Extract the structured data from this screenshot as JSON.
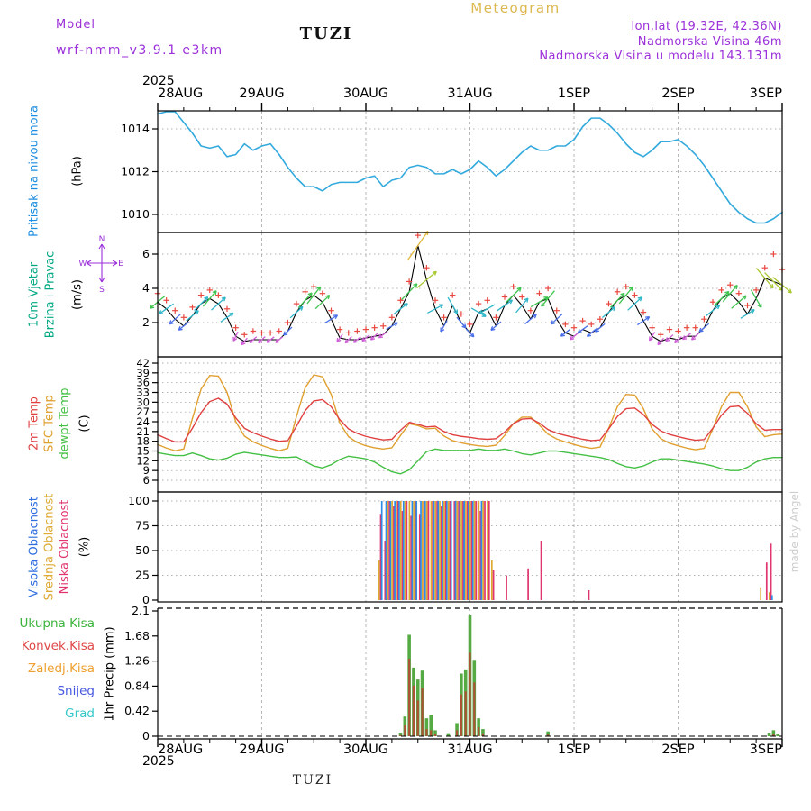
{
  "header": {
    "meteogram_label": "Meteogram",
    "model_label": "Model",
    "model_name": "wrf-nmm_v3.9.1 e3km",
    "station": "TUZI",
    "lonlat": "lon,lat (19.32E, 42.36N)",
    "elevation": "Nadmorska Visina 46m",
    "model_elevation": "Nadmorska Visina u modelu 143.131m"
  },
  "footer": {
    "station": "TUZI",
    "credit": "made by Angel"
  },
  "axis": {
    "year": "2025",
    "dates": [
      "28AUG",
      "29AUG",
      "30AUG",
      "31AUG",
      "1SEP",
      "2SEP",
      "3SEP"
    ],
    "hours_span": 144
  },
  "compass": {
    "n": "N",
    "e": "E",
    "s": "S",
    "w": "W"
  },
  "panels": {
    "pressure": {
      "label": "Pritisak na nivou mora",
      "unit": "(hPa)"
    },
    "wind": {
      "label1": "10m Vjetar",
      "label2": "Brzina i Pravac",
      "unit": "(m/s)"
    },
    "temp": {
      "label1": "2m Temp",
      "label2": "SFC Temp",
      "label3": "dewpt Temp",
      "unit": "(C)"
    },
    "cloud": {
      "label1": "Visoka Oblacnost",
      "label2": "Srednja Oblacnost",
      "label3": "Niska Oblacnost",
      "unit": "(%)"
    },
    "precip": {
      "label1": "Ukupna Kisa",
      "label2": "Konvek.Kisa",
      "label3": "Zaledj.Kisa",
      "label4": "Snijeg",
      "label5": "Grad",
      "unit": "1hr Precip (mm)"
    }
  },
  "colors": {
    "header_purple": "#9b30d9",
    "gold": "#ddb84f",
    "grid": "#999999",
    "pressure_line": "#33aadd",
    "pressure_label": "#1c8de0",
    "wind_label": "#00a884",
    "wind_line": "#000000",
    "gust_marker": "#e8483f",
    "temp2m": "#e04040",
    "sfc": "#e0a030",
    "dew": "#44c044",
    "cloud_high": "#2e8be6",
    "cloud_mid": "#ddaa33",
    "cloud_low": "#e0366e",
    "precip_total": "#55aa44",
    "precip_conv": "#bb4433",
    "precip_ice": "#efa030",
    "snow": "#4658e0",
    "hail": "#35c8c8",
    "wind_speed_scale": [
      [
        1.4,
        "#cf5fd6"
      ],
      [
        2.3,
        "#4b6fe8"
      ],
      [
        3.2,
        "#2fb6c9"
      ],
      [
        4.2,
        "#3fc44f"
      ],
      [
        5.2,
        "#a8c832"
      ],
      [
        99,
        "#e0b83a"
      ]
    ]
  },
  "chart_data": [
    {
      "type": "line",
      "name": "sea_level_pressure",
      "title": "Pritisak na nivou mora",
      "unit": "hPa",
      "time_step_hours": 2,
      "start": "28AUG2025 00UTC",
      "yticks": [
        1010,
        1012,
        1014
      ],
      "ylim": [
        1009.2,
        1014.8
      ],
      "values": [
        1014.7,
        1014.9,
        1014.8,
        1014.3,
        1013.8,
        1013.2,
        1013.1,
        1013.2,
        1012.7,
        1012.8,
        1013.3,
        1013.0,
        1013.2,
        1013.3,
        1012.8,
        1012.2,
        1011.7,
        1011.3,
        1011.3,
        1011.1,
        1011.4,
        1011.5,
        1011.5,
        1011.5,
        1011.7,
        1011.8,
        1011.3,
        1011.6,
        1011.7,
        1012.2,
        1012.3,
        1012.2,
        1011.9,
        1011.9,
        1012.1,
        1011.9,
        1012.1,
        1012.5,
        1012.2,
        1011.8,
        1012.1,
        1012.5,
        1012.9,
        1013.2,
        1013.0,
        1013.0,
        1013.2,
        1013.2,
        1013.5,
        1014.1,
        1014.5,
        1014.5,
        1014.2,
        1013.8,
        1013.3,
        1012.9,
        1012.7,
        1013.0,
        1013.4,
        1013.4,
        1013.5,
        1013.2,
        1012.8,
        1012.3,
        1011.7,
        1011.1,
        1010.5,
        1010.1,
        1009.8,
        1009.6,
        1009.6,
        1009.8,
        1010.1
      ]
    },
    {
      "type": "line+vectors",
      "name": "wind_10m",
      "title": "10m Vjetar Brzina i Pravac",
      "unit": "m/s",
      "time_step_hours": 2,
      "yticks": [
        2,
        4,
        6
      ],
      "ylim": [
        0,
        7.3
      ],
      "speed_ms": [
        3.2,
        2.8,
        2.2,
        1.8,
        2.4,
        3.1,
        3.4,
        3.1,
        2.3,
        1.2,
        0.9,
        1.0,
        1.0,
        1.0,
        1.0,
        1.5,
        2.6,
        3.3,
        3.6,
        3.2,
        2.2,
        1.1,
        1.0,
        1.0,
        1.1,
        1.2,
        1.3,
        1.8,
        2.8,
        3.8,
        6.5,
        4.5,
        2.8,
        1.8,
        3.0,
        2.0,
        1.4,
        2.6,
        2.8,
        1.8,
        3.0,
        3.6,
        3.0,
        2.2,
        3.2,
        3.4,
        2.2,
        1.4,
        1.2,
        1.6,
        1.4,
        1.7,
        2.6,
        3.3,
        3.6,
        3.1,
        2.1,
        1.2,
        0.9,
        1.1,
        1.0,
        1.2,
        1.2,
        1.7,
        2.7,
        3.4,
        3.7,
        3.2,
        2.5,
        3.4,
        4.6,
        4.4,
        4.2
      ],
      "gust_ms": [
        3.7,
        3.3,
        2.7,
        2.3,
        2.9,
        3.6,
        3.9,
        3.6,
        2.8,
        1.7,
        1.3,
        1.5,
        1.4,
        1.4,
        1.5,
        2.0,
        3.1,
        3.8,
        4.1,
        3.7,
        2.7,
        1.6,
        1.4,
        1.5,
        1.6,
        1.7,
        1.8,
        2.3,
        3.3,
        4.4,
        7.1,
        5.2,
        3.3,
        2.3,
        3.6,
        2.5,
        1.9,
        3.1,
        3.3,
        2.3,
        3.5,
        4.1,
        3.5,
        2.7,
        3.7,
        4.0,
        2.7,
        1.9,
        1.7,
        2.1,
        1.9,
        2.2,
        3.1,
        3.8,
        4.1,
        3.6,
        2.6,
        1.7,
        1.3,
        1.6,
        1.5,
        1.7,
        1.7,
        2.2,
        3.2,
        3.9,
        4.2,
        3.7,
        3.0,
        3.9,
        5.2,
        6.0,
        5.1
      ],
      "dir_toward_deg": [
        230,
        235,
        228,
        232,
        50,
        45,
        40,
        48,
        55,
        205,
        220,
        230,
        228,
        233,
        230,
        226,
        48,
        42,
        38,
        46,
        58,
        215,
        225,
        232,
        230,
        226,
        234,
        60,
        52,
        44,
        35,
        50,
        62,
        210,
        150,
        140,
        135,
        120,
        240,
        230,
        55,
        45,
        40,
        50,
        60,
        220,
        228,
        233,
        230,
        234,
        229,
        231,
        50,
        44,
        39,
        47,
        56,
        212,
        222,
        230,
        229,
        233,
        228,
        230,
        52,
        46,
        41,
        49,
        58,
        150,
        140,
        135,
        130
      ]
    },
    {
      "type": "line",
      "name": "temperature",
      "unit": "C",
      "time_step_hours": 2,
      "yticks": [
        6,
        9,
        12,
        15,
        18,
        21,
        24,
        27,
        30,
        33,
        36,
        39,
        42
      ],
      "series": [
        {
          "name": "2m Temp",
          "color_key": "temp2m",
          "values": [
            20.0,
            18.8,
            17.8,
            17.8,
            22.0,
            26.8,
            30.2,
            31.2,
            29.4,
            25.2,
            22.0,
            20.6,
            19.6,
            18.7,
            18.0,
            18.2,
            22.6,
            27.4,
            30.4,
            30.8,
            28.6,
            24.6,
            21.8,
            20.4,
            19.5,
            18.9,
            18.4,
            18.6,
            21.4,
            23.8,
            23.2,
            22.4,
            22.6,
            21.0,
            20.0,
            19.5,
            19.2,
            18.8,
            18.6,
            18.8,
            20.8,
            23.4,
            24.8,
            25.0,
            23.6,
            21.6,
            20.5,
            19.8,
            19.2,
            18.6,
            18.2,
            18.4,
            21.8,
            25.6,
            28.0,
            28.2,
            26.2,
            23.2,
            21.2,
            20.1,
            19.4,
            18.8,
            18.3,
            18.5,
            22.0,
            26.0,
            28.6,
            28.8,
            26.6,
            23.4,
            21.4,
            21.6,
            21.6
          ]
        },
        {
          "name": "SFC Temp",
          "color_key": "sfc",
          "values": [
            17.0,
            15.9,
            15.1,
            15.6,
            25.0,
            34.0,
            38.2,
            38.0,
            33.0,
            24.0,
            19.6,
            17.8,
            16.7,
            15.8,
            15.1,
            15.8,
            25.6,
            34.4,
            38.4,
            37.8,
            32.4,
            23.6,
            19.4,
            17.6,
            16.6,
            16.0,
            15.6,
            16.0,
            19.8,
            23.4,
            22.8,
            21.8,
            22.0,
            19.6,
            18.2,
            17.5,
            17.0,
            16.6,
            16.4,
            16.8,
            19.8,
            23.4,
            25.4,
            25.4,
            23.0,
            20.2,
            18.7,
            17.8,
            17.0,
            16.3,
            15.8,
            16.2,
            22.0,
            28.6,
            32.4,
            32.2,
            28.0,
            21.8,
            18.8,
            17.4,
            16.6,
            15.9,
            15.4,
            15.8,
            21.8,
            28.6,
            33.0,
            33.0,
            28.6,
            22.4,
            19.4,
            20.0,
            20.2
          ]
        },
        {
          "name": "dewpt Temp",
          "color_key": "dew",
          "values": [
            14.5,
            14.0,
            13.6,
            13.6,
            14.4,
            13.6,
            12.6,
            12.2,
            12.8,
            14.0,
            14.6,
            14.2,
            13.8,
            13.4,
            13.0,
            13.0,
            13.2,
            11.8,
            10.4,
            9.8,
            10.8,
            12.4,
            13.4,
            13.0,
            12.6,
            11.6,
            10.0,
            8.6,
            8.0,
            9.2,
            12.0,
            14.8,
            15.6,
            15.2,
            15.2,
            15.2,
            15.2,
            15.6,
            15.2,
            15.2,
            15.6,
            15.0,
            14.2,
            13.8,
            14.4,
            15.0,
            15.0,
            14.6,
            14.2,
            13.8,
            13.4,
            13.0,
            12.4,
            11.2,
            10.2,
            9.8,
            10.4,
            11.6,
            12.6,
            12.6,
            12.2,
            11.8,
            11.4,
            11.0,
            10.4,
            9.6,
            9.0,
            9.0,
            10.0,
            11.6,
            12.6,
            13.0,
            13.0
          ]
        }
      ]
    },
    {
      "type": "bar",
      "name": "cloudiness",
      "unit": "%",
      "yticks": [
        0,
        25,
        50,
        75,
        100
      ],
      "series_order": [
        "visoka",
        "srednja",
        "niska"
      ],
      "note": "bars = [hour_from_start, visoka%, srednja%, niska%]; hours omitted are 0",
      "bars": [
        [
          51,
          0,
          40,
          87
        ],
        [
          52,
          100,
          0,
          60
        ],
        [
          53,
          100,
          100,
          100
        ],
        [
          54,
          100,
          100,
          95
        ],
        [
          55,
          100,
          100,
          100
        ],
        [
          56,
          100,
          100,
          90
        ],
        [
          57,
          100,
          100,
          100
        ],
        [
          58,
          0,
          100,
          85
        ],
        [
          59,
          100,
          100,
          100
        ],
        [
          60,
          100,
          0,
          87
        ],
        [
          61,
          100,
          100,
          100
        ],
        [
          62,
          100,
          100,
          100
        ],
        [
          63,
          0,
          100,
          100
        ],
        [
          64,
          100,
          100,
          100
        ],
        [
          65,
          100,
          100,
          95
        ],
        [
          66,
          100,
          100,
          100
        ],
        [
          67,
          100,
          100,
          100
        ],
        [
          68,
          100,
          0,
          100
        ],
        [
          69,
          100,
          100,
          100
        ],
        [
          70,
          100,
          100,
          100
        ],
        [
          71,
          100,
          100,
          100
        ],
        [
          72,
          100,
          100,
          100
        ],
        [
          73,
          100,
          100,
          100
        ],
        [
          74,
          0,
          100,
          90
        ],
        [
          75,
          100,
          100,
          100
        ],
        [
          76,
          0,
          100,
          100
        ],
        [
          77,
          0,
          40,
          30
        ],
        [
          80,
          0,
          0,
          25
        ],
        [
          85,
          0,
          0,
          32
        ],
        [
          88,
          0,
          0,
          60
        ],
        [
          99,
          0,
          0,
          10
        ],
        [
          139,
          0,
          13,
          0
        ],
        [
          140,
          0,
          0,
          38
        ],
        [
          141,
          0,
          8,
          57
        ],
        [
          142,
          5,
          0,
          0
        ]
      ]
    },
    {
      "type": "bar",
      "name": "precip_1hr",
      "unit": "mm",
      "yticks": [
        0,
        0.42,
        0.84,
        1.26,
        1.68,
        2.1
      ],
      "ytick_labels": [
        "0",
        "0.42",
        "0.84",
        "1.26",
        "1.68",
        "2.1"
      ],
      "series_order": [
        "ukupna",
        "konvek",
        "zaledj",
        "snijeg",
        "grad"
      ],
      "note": "bars = [hour_from_start, ukupna, konvek, zaledj, snijeg, grad]; hours omitted are 0",
      "bars": [
        [
          56,
          0.06,
          0.02,
          0,
          0,
          0
        ],
        [
          57,
          0.33,
          0.18,
          0,
          0,
          0
        ],
        [
          58,
          1.7,
          1.3,
          0,
          0,
          0
        ],
        [
          59,
          1.15,
          0.85,
          0,
          0,
          0
        ],
        [
          60,
          0.95,
          0.6,
          0,
          0,
          0
        ],
        [
          61,
          1.1,
          0.8,
          0,
          0,
          0
        ],
        [
          62,
          0.3,
          0.12,
          0,
          0,
          0
        ],
        [
          63,
          0.35,
          0.1,
          0,
          0,
          0
        ],
        [
          64,
          0.1,
          0.04,
          0,
          0,
          0
        ],
        [
          67,
          0.05,
          0,
          0,
          0,
          0
        ],
        [
          69,
          0.22,
          0.1,
          0,
          0,
          0
        ],
        [
          70,
          1.05,
          0.7,
          0,
          0,
          0
        ],
        [
          71,
          1.12,
          0.75,
          0,
          0,
          0
        ],
        [
          72,
          2.03,
          1.4,
          0,
          0,
          0
        ],
        [
          73,
          1.28,
          0.9,
          0,
          0,
          0
        ],
        [
          74,
          0.3,
          0.15,
          0,
          0,
          0
        ],
        [
          75,
          0.12,
          0.05,
          0,
          0,
          0
        ],
        [
          90,
          0.08,
          0.03,
          0,
          0,
          0
        ],
        [
          141,
          0.06,
          0,
          0,
          0,
          0
        ],
        [
          142,
          0.1,
          0.04,
          0,
          0,
          0
        ],
        [
          143,
          0.04,
          0,
          0,
          0,
          0
        ]
      ]
    }
  ]
}
